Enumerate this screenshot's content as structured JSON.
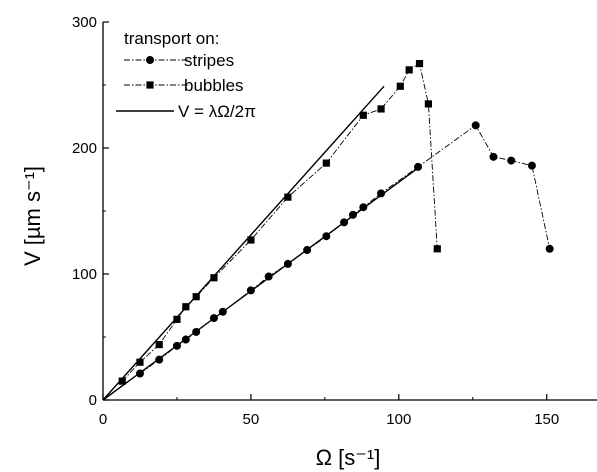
{
  "chart_data": {
    "type": "scatter",
    "xlabel": "Ω [s⁻¹]",
    "ylabel": "V [µm s⁻¹]",
    "xlim": [
      0,
      167
    ],
    "ylim": [
      0,
      300
    ],
    "xticks": [
      0,
      50,
      100,
      150
    ],
    "yticks": [
      0,
      100,
      200,
      300
    ],
    "legend_title": "transport on:",
    "legend_position": "top-left",
    "grid": false,
    "series": [
      {
        "name": "stripes",
        "marker": "circle",
        "line": "dash-dot",
        "x": [
          12.5,
          19,
          25,
          28,
          31.5,
          37.5,
          40.5,
          50,
          56,
          62.5,
          69,
          75.5,
          81.5,
          84.5,
          88,
          94,
          106.5,
          126,
          132,
          138,
          145,
          151
        ],
        "y": [
          21,
          32,
          43,
          48,
          54,
          65,
          70,
          87,
          98,
          108,
          119,
          130,
          141,
          147,
          153,
          164,
          185,
          218,
          193,
          190,
          186,
          120
        ]
      },
      {
        "name": "bubbles",
        "marker": "square",
        "line": "dash-dot",
        "x": [
          6.5,
          12.5,
          19,
          25,
          28,
          31.5,
          37.5,
          50,
          62.5,
          75.5,
          88,
          94,
          100.5,
          103.5,
          107,
          110,
          113
        ],
        "y": [
          15,
          30,
          44,
          64,
          74,
          82,
          97,
          127,
          161,
          188,
          226,
          231,
          249,
          262,
          267,
          235,
          120
        ]
      },
      {
        "name": "V = λΩ/2π",
        "type": "line",
        "line": "solid",
        "segments": [
          {
            "x": [
              0,
              95
            ],
            "y": [
              0,
              249
            ]
          },
          {
            "x": [
              0,
              107
            ],
            "y": [
              0,
              185
            ]
          }
        ]
      }
    ]
  }
}
